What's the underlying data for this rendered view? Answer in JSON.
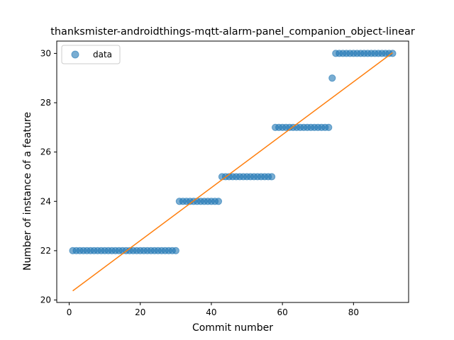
{
  "chart_data": {
    "type": "scatter",
    "title": "thanksmister-androidthings-mqtt-alarm-panel_companion_object-linear",
    "xlabel": "Commit number",
    "ylabel": "Number of instance of a feature",
    "xlim": [
      -3.5,
      95.5
    ],
    "ylim": [
      19.9,
      30.5
    ],
    "xticks": [
      0,
      20,
      40,
      60,
      80
    ],
    "yticks": [
      20,
      22,
      24,
      26,
      28,
      30
    ],
    "grid": false,
    "legend": {
      "position": "top-left",
      "entries": [
        "data"
      ]
    },
    "series": [
      {
        "name": "data",
        "style": "points",
        "color": "#1f77b4",
        "segments": [
          {
            "x_from": 1,
            "x_to": 30,
            "y": 22
          },
          {
            "x_from": 31,
            "x_to": 42,
            "y": 24
          },
          {
            "x_from": 43,
            "x_to": 57,
            "y": 25
          },
          {
            "x_from": 58,
            "x_to": 73,
            "y": 27
          },
          {
            "x_from": 74,
            "x_to": 74,
            "y": 29
          },
          {
            "x_from": 75,
            "x_to": 91,
            "y": 30
          }
        ]
      },
      {
        "style": "line",
        "color": "#ff7f0e",
        "x": [
          1,
          91
        ],
        "y": [
          20.37,
          30.03
        ]
      }
    ]
  }
}
